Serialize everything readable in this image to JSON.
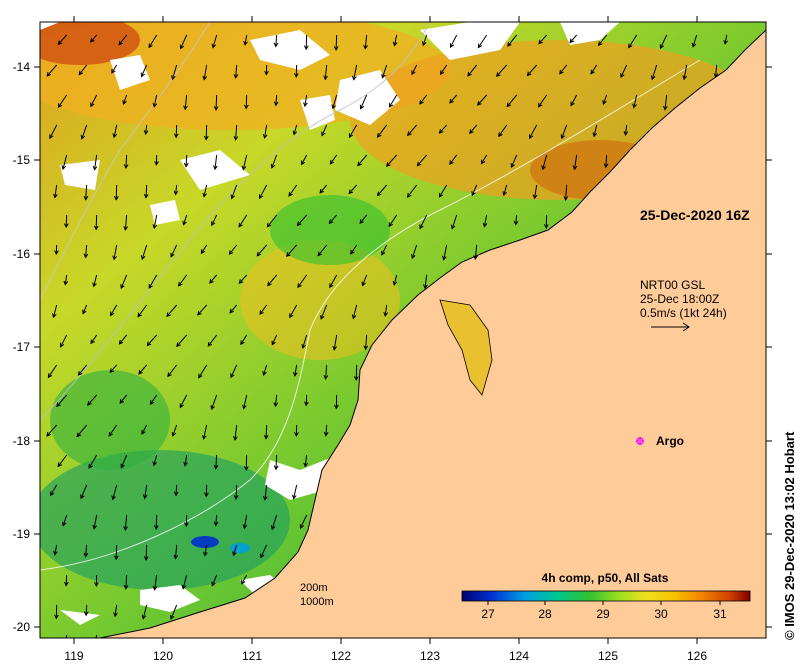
{
  "map": {
    "product": "4h comp, p50, All Sats",
    "date_label": "25-Dec-2020 16Z",
    "current_product": "NRT00 GSL",
    "current_time": "25-Dec 18:00Z",
    "vector_scale": "0.5m/s (1kt 24h)",
    "argo_label": "Argo",
    "contour_labels": [
      "200m",
      "1000m"
    ],
    "credit": "© IMOS 29-Dec-2020 13:02 Hobart",
    "x_ticks": [
      "119",
      "120",
      "121",
      "122",
      "123",
      "124",
      "125",
      "126"
    ],
    "y_ticks": [
      "-14",
      "-15",
      "-16",
      "-17",
      "-18",
      "-19",
      "-20"
    ],
    "colorbar": {
      "ticks": [
        "27",
        "28",
        "29",
        "30",
        "31"
      ],
      "colors": [
        "#000070",
        "#0030d0",
        "#00a0e0",
        "#00c890",
        "#30c030",
        "#a0e020",
        "#f0e020",
        "#f8c000",
        "#f08000",
        "#d04000",
        "#800000"
      ]
    },
    "colors": {
      "land": "#ffcc99",
      "frame": "#000000",
      "argo": "#ff00ff"
    }
  }
}
